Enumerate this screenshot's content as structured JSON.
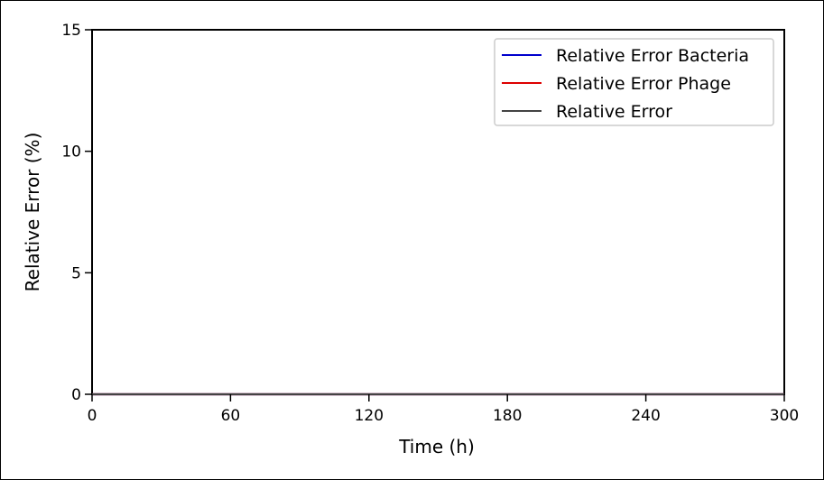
{
  "chart_data": {
    "type": "line",
    "title": "",
    "xlabel": "Time (h)",
    "ylabel": "Relative Error (%)",
    "xlim": [
      0,
      300
    ],
    "ylim": [
      0,
      15
    ],
    "xticks": [
      "0",
      "60",
      "120",
      "180",
      "240",
      "300"
    ],
    "yticks": [
      "0",
      "5",
      "10",
      "15"
    ],
    "grid": false,
    "legend_position": "top-right",
    "series": [
      {
        "name": "Relative Error Bacteria",
        "color": "#0000cc",
        "x": [
          0,
          300
        ],
        "y": [
          0,
          0
        ]
      },
      {
        "name": "Relative Error Phage",
        "color": "#dd0000",
        "x": [
          0,
          300
        ],
        "y": [
          0,
          0
        ]
      },
      {
        "name": "Relative Error",
        "color": "#444444",
        "x": [
          0,
          300
        ],
        "y": [
          0,
          0
        ]
      }
    ]
  }
}
